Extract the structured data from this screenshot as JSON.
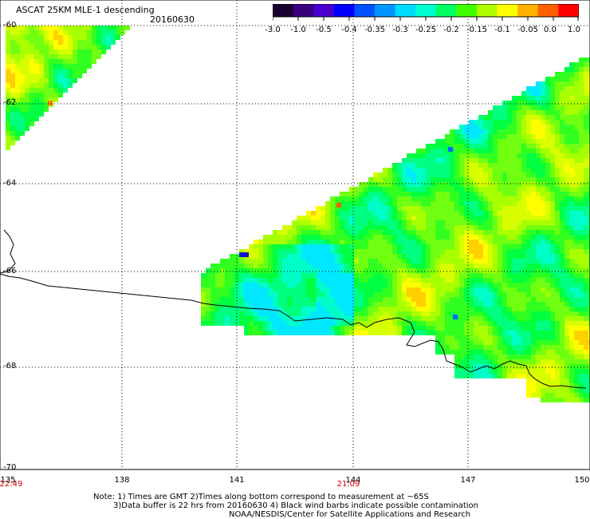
{
  "title": "ASCAT 25KM MLE-1 descending",
  "date": "20160630",
  "colorbar": {
    "tick_labels": [
      "-3.0",
      "-1.0",
      "-0.5",
      "-0.4",
      "-0.35",
      "-0.3",
      "-0.25",
      "-0.2",
      "-0.15",
      "-0.1",
      "-0.05",
      "0.0",
      "1.0"
    ],
    "colors": [
      "#1a0030",
      "#3a0080",
      "#4b00d0",
      "#0000ff",
      "#0050ff",
      "#0096ff",
      "#00dcff",
      "#00ffd0",
      "#00ff60",
      "#40ff00",
      "#b0ff00",
      "#ffff00",
      "#ffb000",
      "#ff6000",
      "#ff0000"
    ]
  },
  "axes": {
    "lat_labels": [
      "-60",
      "-62",
      "-64",
      "-66",
      "-68",
      "-70"
    ],
    "lon_labels": [
      "135",
      "138",
      "141",
      "144",
      "147",
      "150"
    ],
    "time_labels": [
      "22:49",
      "21:09"
    ]
  },
  "notes": [
    "Note: 1) Times are GMT 2)Times along bottom correspond to measurement at ~65S",
    "3)Data buffer is 22 hrs from 20160630 4) Black wind barbs indicate possible contamination",
    "NOAA/NESDIS/Center for Satellite Applications and Research"
  ],
  "colors": {
    "grid": "#000000",
    "coastline": "#000000"
  }
}
